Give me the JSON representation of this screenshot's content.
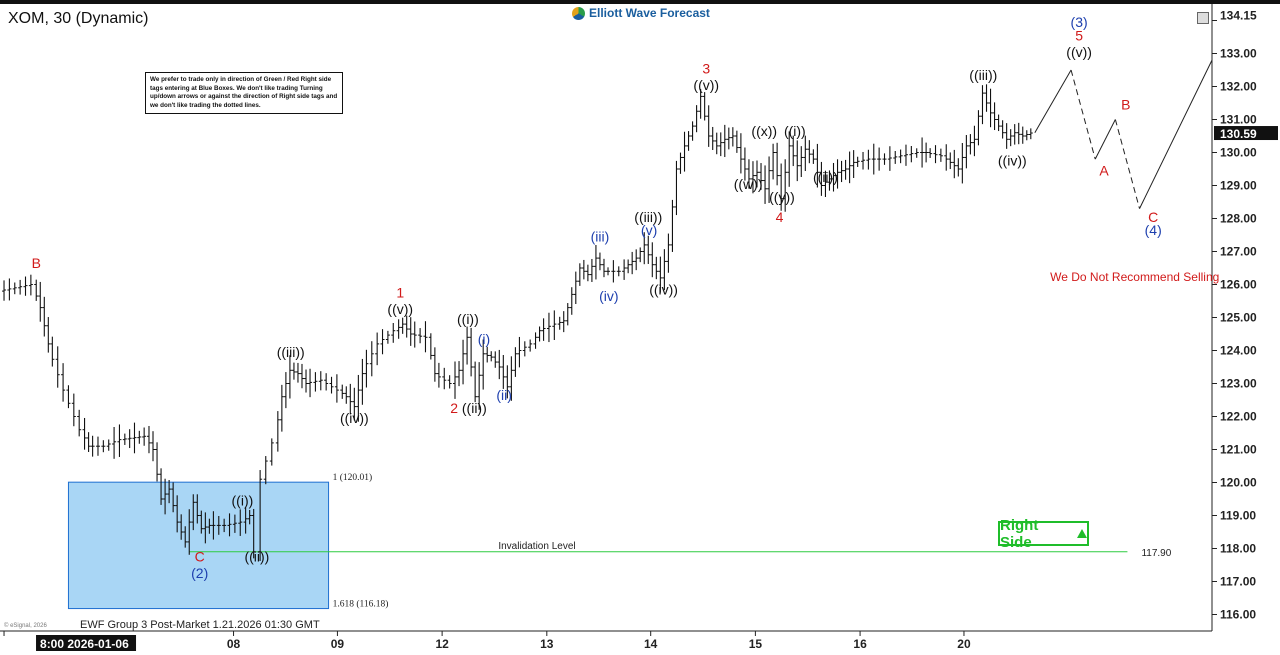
{
  "header": {
    "symbol_title": "XOM, 30 (Dynamic)",
    "brand": "Elliott Wave Forecast",
    "brand_icon": "ewf-logo-icon"
  },
  "disclaimer": "We prefer to trade only in direction of Green / Red Right side tags entering at Blue Boxes. We don't like trading Turning up/down arrows or against the direction of Right side tags and we don't like trading the dotted lines.",
  "right_side": {
    "label": "Right Side",
    "icon": "arrow-up-icon",
    "color": "#1fbd2a"
  },
  "footer": {
    "text": "EWF Group 3 Post-Market 1.21.2026 01:30 GMT",
    "esignal": "© eSignal, 2026"
  },
  "chart_data": {
    "type": "bar",
    "ylim": [
      115.5,
      134.5
    ],
    "y_ticks": [
      116,
      117,
      118,
      119,
      120,
      121,
      122,
      123,
      124,
      125,
      126,
      127,
      128,
      129,
      130,
      131,
      132,
      133,
      134
    ],
    "y_tick_labels": [
      "116.00",
      "117.00",
      "118.00",
      "119.00",
      "120.00",
      "121.00",
      "122.00",
      "123.00",
      "124.00",
      "125.00",
      "126.00",
      "127.00",
      "128.00",
      "129.00",
      "130.00",
      "131.00",
      "132.00",
      "133.00",
      "134.00"
    ],
    "x_range": [
      0,
      130
    ],
    "x_ticks": [
      {
        "x": 0,
        "label": "8:00 2026-01-06"
      },
      {
        "x": 28.5,
        "label": "08"
      },
      {
        "x": 41.4,
        "label": "09"
      },
      {
        "x": 54.4,
        "label": "12"
      },
      {
        "x": 67.4,
        "label": "13"
      },
      {
        "x": 80.3,
        "label": "14"
      },
      {
        "x": 93.3,
        "label": "15"
      },
      {
        "x": 106.3,
        "label": "16"
      },
      {
        "x": 119.2,
        "label": "20"
      }
    ],
    "last_price": {
      "value": 130.59,
      "label": "130.59"
    },
    "top_price": {
      "value": 134.15,
      "label": "134.15"
    },
    "price_path": [
      [
        0,
        125.8
      ],
      [
        4,
        126.0
      ],
      [
        5,
        125.3
      ],
      [
        6,
        124.2
      ],
      [
        8,
        122.8
      ],
      [
        10,
        121.6
      ],
      [
        11,
        121.1
      ],
      [
        13,
        121.1
      ],
      [
        15,
        121.3
      ],
      [
        18,
        121.4
      ],
      [
        19,
        121.0
      ],
      [
        20,
        119.5
      ],
      [
        21,
        119.8
      ],
      [
        22,
        118.8
      ],
      [
        23,
        118.2
      ],
      [
        24,
        119.4
      ],
      [
        25,
        118.6
      ],
      [
        26,
        118.7
      ],
      [
        28,
        118.7
      ],
      [
        30,
        118.8
      ],
      [
        31,
        119.0
      ],
      [
        31.8,
        117.9
      ],
      [
        32.5,
        120.1
      ],
      [
        34,
        121.2
      ],
      [
        35,
        122.6
      ],
      [
        36,
        123.4
      ],
      [
        37,
        123.3
      ],
      [
        38,
        123.0
      ],
      [
        40,
        123.1
      ],
      [
        42,
        122.8
      ],
      [
        43,
        122.6
      ],
      [
        44,
        122.3
      ],
      [
        45,
        123.3
      ],
      [
        47,
        124.2
      ],
      [
        49,
        124.6
      ],
      [
        50,
        124.8
      ],
      [
        51,
        124.5
      ],
      [
        53,
        124.4
      ],
      [
        54,
        123.3
      ],
      [
        56,
        123.0
      ],
      [
        57,
        123.4
      ],
      [
        58,
        124.4
      ],
      [
        59,
        122.6
      ],
      [
        60,
        123.9
      ],
      [
        61,
        123.8
      ],
      [
        62,
        123.5
      ],
      [
        63,
        122.9
      ],
      [
        64,
        123.9
      ],
      [
        66,
        124.2
      ],
      [
        67,
        124.6
      ],
      [
        69,
        124.8
      ],
      [
        70,
        124.9
      ],
      [
        71,
        125.7
      ],
      [
        72,
        126.5
      ],
      [
        73,
        126.3
      ],
      [
        74,
        126.8
      ],
      [
        75,
        126.4
      ],
      [
        77,
        126.4
      ],
      [
        78,
        126.6
      ],
      [
        79,
        126.8
      ],
      [
        80,
        127.2
      ],
      [
        81,
        126.6
      ],
      [
        82,
        126.2
      ],
      [
        83,
        127.2
      ],
      [
        84,
        129.5
      ],
      [
        85,
        130.2
      ],
      [
        86,
        130.8
      ],
      [
        87,
        131.7
      ],
      [
        88,
        130.5
      ],
      [
        89,
        130.2
      ],
      [
        90,
        130.4
      ],
      [
        91,
        130.5
      ],
      [
        92,
        129.8
      ],
      [
        93,
        129.2
      ],
      [
        94,
        129.4
      ],
      [
        95,
        128.9
      ],
      [
        96,
        130.0
      ],
      [
        97,
        128.6
      ],
      [
        98,
        130.2
      ],
      [
        99,
        129.6
      ],
      [
        100,
        130.1
      ],
      [
        101,
        129.8
      ],
      [
        102,
        129.0
      ],
      [
        103,
        129.2
      ],
      [
        104,
        129.4
      ],
      [
        105,
        129.5
      ],
      [
        106,
        129.7
      ],
      [
        108,
        129.8
      ],
      [
        110,
        129.8
      ],
      [
        112,
        129.9
      ],
      [
        114,
        130.0
      ],
      [
        115,
        130.0
      ],
      [
        117,
        129.9
      ],
      [
        118,
        129.7
      ],
      [
        119,
        129.5
      ],
      [
        120,
        130.2
      ],
      [
        121,
        130.4
      ],
      [
        122,
        131.8
      ],
      [
        123,
        131.2
      ],
      [
        124,
        130.8
      ],
      [
        125,
        130.4
      ],
      [
        126,
        130.6
      ],
      [
        127,
        130.5
      ],
      [
        128,
        130.59
      ]
    ],
    "projection": [
      {
        "x": [
          128,
          132.5
        ],
        "y": [
          130.6,
          132.5
        ],
        "style": "solid"
      },
      {
        "x": [
          132.5,
          135.5
        ],
        "y": [
          132.5,
          129.8
        ],
        "style": "dashed"
      },
      {
        "x": [
          135.5,
          138
        ],
        "y": [
          129.8,
          131.0
        ],
        "style": "solid"
      },
      {
        "x": [
          138,
          141
        ],
        "y": [
          131.0,
          128.3
        ],
        "style": "dashed"
      },
      {
        "x": [
          141,
          150
        ],
        "y": [
          128.3,
          132.8
        ],
        "style": "solid"
      }
    ],
    "blue_box": {
      "x": [
        8,
        40.3
      ],
      "y": [
        116.18,
        120.01
      ],
      "labels": [
        "1 (120.01)",
        "1.618 (116.18)"
      ]
    },
    "invalidation": {
      "value": 117.9,
      "label": "Invalidation Level",
      "price_label": "117.90",
      "x_end": 139.5
    },
    "wave_labels": [
      {
        "text": "B",
        "x": 4,
        "y": 126.5,
        "color": "#d11a1a"
      },
      {
        "text": "C",
        "x": 24.3,
        "y": 117.6,
        "color": "#d11a1a"
      },
      {
        "text": "(2)",
        "x": 24.3,
        "y": 117.1,
        "color": "#1d3fae"
      },
      {
        "text": "((i))",
        "x": 29.6,
        "y": 119.3,
        "color": "#111111"
      },
      {
        "text": "((ii))",
        "x": 31.4,
        "y": 117.6,
        "color": "#111111"
      },
      {
        "text": "((iii))",
        "x": 35.6,
        "y": 123.8,
        "color": "#111111"
      },
      {
        "text": "((iv))",
        "x": 43.5,
        "y": 121.8,
        "color": "#111111"
      },
      {
        "text": "((v))",
        "x": 49.2,
        "y": 125.1,
        "color": "#111111"
      },
      {
        "text": "1",
        "x": 49.2,
        "y": 125.6,
        "color": "#d11a1a"
      },
      {
        "text": "2",
        "x": 55.9,
        "y": 122.1,
        "color": "#d11a1a"
      },
      {
        "text": "((ii))",
        "x": 58.4,
        "y": 122.1,
        "color": "#111111"
      },
      {
        "text": "((i))",
        "x": 57.6,
        "y": 124.8,
        "color": "#111111"
      },
      {
        "text": "(i)",
        "x": 59.6,
        "y": 124.2,
        "color": "#1d3fae"
      },
      {
        "text": "(ii)",
        "x": 62.1,
        "y": 122.5,
        "color": "#1d3fae"
      },
      {
        "text": "(iii)",
        "x": 74.0,
        "y": 127.3,
        "color": "#1d3fae"
      },
      {
        "text": "(iv)",
        "x": 75.1,
        "y": 125.5,
        "color": "#1d3fae"
      },
      {
        "text": "((iii))",
        "x": 80.0,
        "y": 127.9,
        "color": "#111111"
      },
      {
        "text": "(v)",
        "x": 80.1,
        "y": 127.5,
        "color": "#1d3fae"
      },
      {
        "text": "((iv))",
        "x": 81.9,
        "y": 125.7,
        "color": "#111111"
      },
      {
        "text": "3",
        "x": 87.2,
        "y": 132.4,
        "color": "#d11a1a"
      },
      {
        "text": "((v))",
        "x": 87.2,
        "y": 131.9,
        "color": "#111111"
      },
      {
        "text": "((w))",
        "x": 92.4,
        "y": 128.9,
        "color": "#111111"
      },
      {
        "text": "((x))",
        "x": 94.4,
        "y": 130.5,
        "color": "#111111"
      },
      {
        "text": "((i))",
        "x": 98.2,
        "y": 130.5,
        "color": "#111111"
      },
      {
        "text": "((y))",
        "x": 96.6,
        "y": 128.5,
        "color": "#111111"
      },
      {
        "text": "4",
        "x": 96.3,
        "y": 127.9,
        "color": "#d11a1a"
      },
      {
        "text": "((ii))",
        "x": 102.0,
        "y": 129.1,
        "color": "#111111"
      },
      {
        "text": "((iii))",
        "x": 121.6,
        "y": 132.2,
        "color": "#111111"
      },
      {
        "text": "((iv))",
        "x": 125.2,
        "y": 129.6,
        "color": "#111111"
      },
      {
        "text": "(3)",
        "x": 133.5,
        "y": 133.8,
        "color": "#1d3fae"
      },
      {
        "text": "5",
        "x": 133.5,
        "y": 133.4,
        "color": "#d11a1a"
      },
      {
        "text": "((v))",
        "x": 133.5,
        "y": 132.9,
        "color": "#111111"
      },
      {
        "text": "A",
        "x": 136.6,
        "y": 129.3,
        "color": "#d11a1a"
      },
      {
        "text": "B",
        "x": 139.3,
        "y": 131.3,
        "color": "#d11a1a"
      },
      {
        "text": "C",
        "x": 142.7,
        "y": 127.9,
        "color": "#d11a1a"
      },
      {
        "text": "(4)",
        "x": 142.7,
        "y": 127.5,
        "color": "#1d3fae"
      }
    ],
    "annotation": {
      "text": "We Do Not Recommend Selling",
      "x": 129.9,
      "y": 126.1,
      "color": "#d11a1a"
    }
  }
}
